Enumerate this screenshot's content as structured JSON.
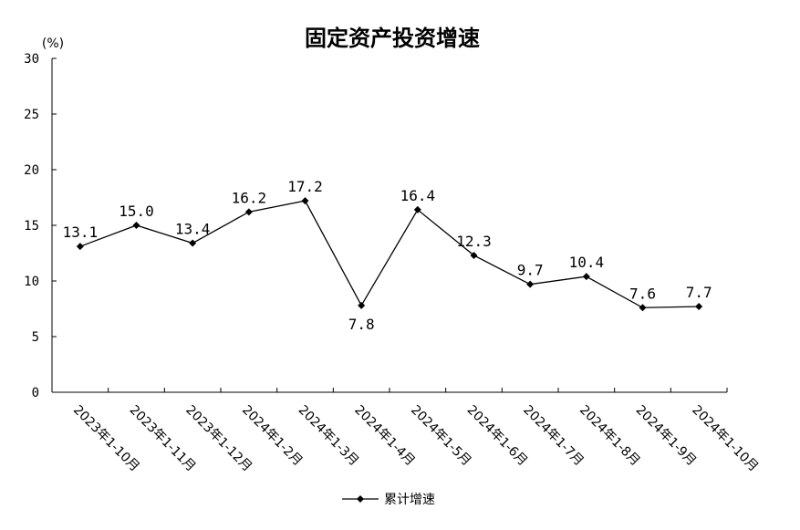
{
  "chart_data": {
    "type": "line",
    "title": "固定资产投资增速",
    "unit_label": "(%)",
    "categories": [
      "2023年1-10月",
      "2023年1-11月",
      "2023年1-12月",
      "2024年1-2月",
      "2024年1-3月",
      "2024年1-4月",
      "2024年1-5月",
      "2024年1-6月",
      "2024年1-7月",
      "2024年1-8月",
      "2024年1-9月",
      "2024年1-10月"
    ],
    "series": [
      {
        "name": "累计增速",
        "values": [
          13.1,
          15.0,
          13.4,
          16.2,
          17.2,
          7.8,
          16.4,
          12.3,
          9.7,
          10.4,
          7.6,
          7.7
        ],
        "labels": [
          "13.1",
          "15.0",
          "13.4",
          "16.2",
          "17.2",
          "7.8",
          "16.4",
          "12.3",
          "9.7",
          "10.4",
          "7.6",
          "7.7"
        ]
      }
    ],
    "ylim": [
      0,
      30
    ],
    "yticks": [
      0,
      5,
      10,
      15,
      20,
      25,
      30
    ],
    "grid": false,
    "legend_position": "bottom-center",
    "colors": {
      "line": "#000000",
      "marker": "#000000"
    }
  }
}
